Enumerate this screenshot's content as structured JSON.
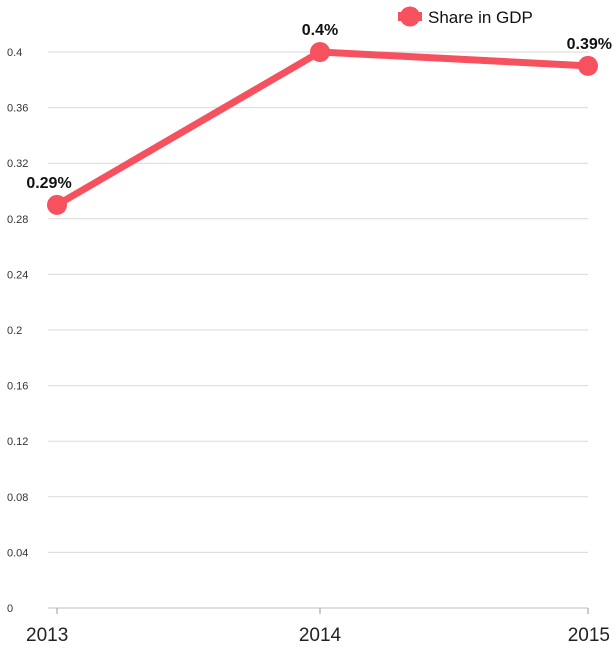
{
  "chart_data": {
    "type": "line",
    "title": "",
    "xlabel": "",
    "ylabel": "",
    "categories": [
      "2013",
      "2014",
      "2015"
    ],
    "series": [
      {
        "name": "Share in GDP",
        "values": [
          0.29,
          0.4,
          0.39
        ],
        "labels": [
          "0.29%",
          "0.4%",
          "0.39%"
        ],
        "color": "#f5515f"
      }
    ],
    "ylim": [
      0,
      0.4
    ],
    "yticks": [
      "0",
      "0.04",
      "0.08",
      "0.12",
      "0.16",
      "0.2",
      "0.24",
      "0.28",
      "0.32",
      "0.36",
      "0.4"
    ],
    "grid": true,
    "legend_position": "top-right"
  }
}
